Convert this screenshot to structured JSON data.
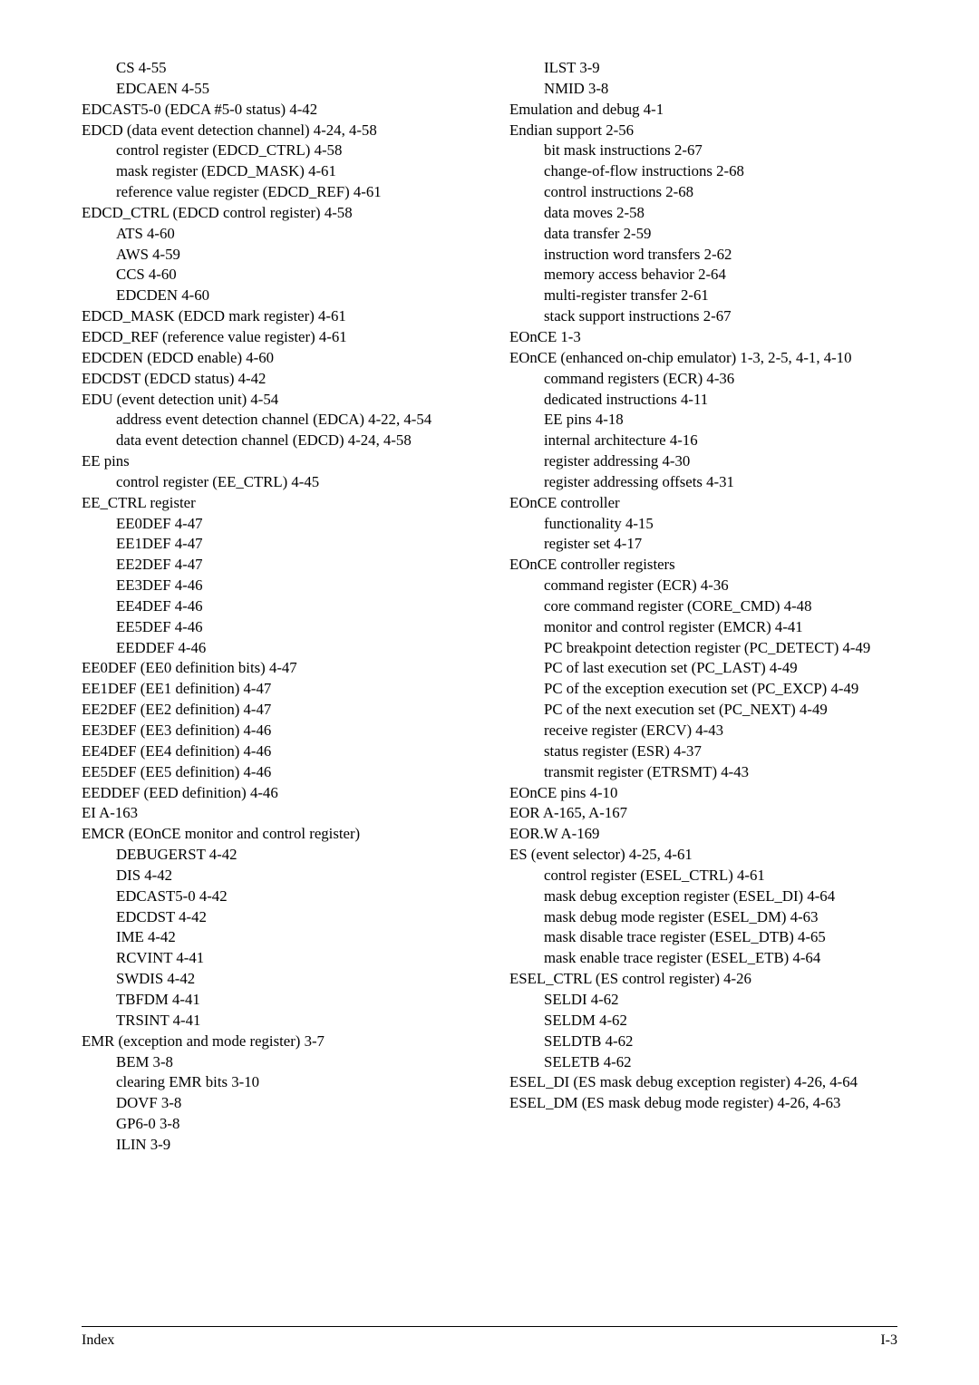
{
  "footer": {
    "left": "Index",
    "right": "I-3"
  },
  "left": [
    {
      "t": "CS 4-55",
      "l": 1
    },
    {
      "t": "EDCAEN 4-55",
      "l": 1
    },
    {
      "t": "EDCAST5-0 (EDCA #5-0 status) 4-42",
      "l": 0
    },
    {
      "t": "EDCD (data event detection channel) 4-24, 4-58",
      "l": 0
    },
    {
      "t": "control register (EDCD_CTRL) 4-58",
      "l": 1
    },
    {
      "t": "mask register (EDCD_MASK) 4-61",
      "l": 1
    },
    {
      "t": "reference value register (EDCD_REF) 4-61",
      "l": 1
    },
    {
      "t": "EDCD_CTRL (EDCD control register) 4-58",
      "l": 0
    },
    {
      "t": "ATS 4-60",
      "l": 1
    },
    {
      "t": "AWS 4-59",
      "l": 1
    },
    {
      "t": "CCS 4-60",
      "l": 1
    },
    {
      "t": "EDCDEN 4-60",
      "l": 1
    },
    {
      "t": "EDCD_MASK (EDCD mark register) 4-61",
      "l": 0
    },
    {
      "t": "EDCD_REF (reference value register) 4-61",
      "l": 0
    },
    {
      "t": "EDCDEN (EDCD enable) 4-60",
      "l": 0
    },
    {
      "t": "EDCDST (EDCD status) 4-42",
      "l": 0
    },
    {
      "t": "EDU (event detection unit) 4-54",
      "l": 0
    },
    {
      "t": "address event detection channel (EDCA) 4-22, 4-54",
      "l": 1
    },
    {
      "t": "data event detection channel (EDCD) 4-24, 4-58",
      "l": 1
    },
    {
      "t": "EE pins",
      "l": 0
    },
    {
      "t": "control register (EE_CTRL) 4-45",
      "l": 1
    },
    {
      "t": "EE_CTRL register",
      "l": 0
    },
    {
      "t": "EE0DEF 4-47",
      "l": 1
    },
    {
      "t": "EE1DEF 4-47",
      "l": 1
    },
    {
      "t": "EE2DEF 4-47",
      "l": 1
    },
    {
      "t": "EE3DEF 4-46",
      "l": 1
    },
    {
      "t": "EE4DEF 4-46",
      "l": 1
    },
    {
      "t": "EE5DEF 4-46",
      "l": 1
    },
    {
      "t": "EEDDEF 4-46",
      "l": 1
    },
    {
      "t": "EE0DEF (EE0 definition bits) 4-47",
      "l": 0
    },
    {
      "t": "EE1DEF (EE1 definition) 4-47",
      "l": 0
    },
    {
      "t": "EE2DEF (EE2 definition) 4-47",
      "l": 0
    },
    {
      "t": "EE3DEF (EE3 definition) 4-46",
      "l": 0
    },
    {
      "t": "EE4DEF (EE4 definition) 4-46",
      "l": 0
    },
    {
      "t": "EE5DEF (EE5 definition) 4-46",
      "l": 0
    },
    {
      "t": "EEDDEF (EED definition) 4-46",
      "l": 0
    },
    {
      "t": "EI A-163",
      "l": 0
    },
    {
      "t": "EMCR (EOnCE monitor and control register)",
      "l": 0
    },
    {
      "t": "DEBUGERST 4-42",
      "l": 1
    },
    {
      "t": "DIS 4-42",
      "l": 1
    },
    {
      "t": "EDCAST5-0 4-42",
      "l": 1
    },
    {
      "t": "EDCDST 4-42",
      "l": 1
    },
    {
      "t": "IME 4-42",
      "l": 1
    },
    {
      "t": "RCVINT 4-41",
      "l": 1
    },
    {
      "t": "SWDIS 4-42",
      "l": 1
    },
    {
      "t": "TBFDM 4-41",
      "l": 1
    },
    {
      "t": "TRSINT 4-41",
      "l": 1
    },
    {
      "t": "EMR (exception and mode register) 3-7",
      "l": 0
    },
    {
      "t": "BEM 3-8",
      "l": 1
    },
    {
      "t": "clearing EMR bits 3-10",
      "l": 1
    },
    {
      "t": "DOVF 3-8",
      "l": 1
    },
    {
      "t": "GP6-0 3-8",
      "l": 1
    },
    {
      "t": "ILIN 3-9",
      "l": 1
    }
  ],
  "right": [
    {
      "t": "ILST 3-9",
      "l": 1
    },
    {
      "t": "NMID 3-8",
      "l": 1
    },
    {
      "t": "Emulation and debug 4-1",
      "l": 0
    },
    {
      "t": "Endian support 2-56",
      "l": 0
    },
    {
      "t": "bit mask instructions 2-67",
      "l": 1
    },
    {
      "t": "change-of-flow instructions 2-68",
      "l": 1
    },
    {
      "t": "control instructions 2-68",
      "l": 1
    },
    {
      "t": "data moves 2-58",
      "l": 1
    },
    {
      "t": "data transfer 2-59",
      "l": 1
    },
    {
      "t": "instruction word transfers 2-62",
      "l": 1
    },
    {
      "t": "memory access behavior 2-64",
      "l": 1
    },
    {
      "t": "multi-register transfer 2-61",
      "l": 1
    },
    {
      "t": "stack support instructions 2-67",
      "l": 1
    },
    {
      "t": "EOnCE 1-3",
      "l": 0
    },
    {
      "t": "EOnCE (enhanced on-chip emulator) 1-3, 2-5, 4-1, 4-10",
      "l": 0
    },
    {
      "t": "command registers (ECR) 4-36",
      "l": 1
    },
    {
      "t": "dedicated instructions 4-11",
      "l": 1
    },
    {
      "t": "EE pins 4-18",
      "l": 1
    },
    {
      "t": "internal architecture 4-16",
      "l": 1
    },
    {
      "t": "register addressing 4-30",
      "l": 1
    },
    {
      "t": "register addressing offsets 4-31",
      "l": 1
    },
    {
      "t": "EOnCE controller",
      "l": 0
    },
    {
      "t": "functionality 4-15",
      "l": 1
    },
    {
      "t": "register set 4-17",
      "l": 1
    },
    {
      "t": "EOnCE controller registers",
      "l": 0
    },
    {
      "t": "command register (ECR) 4-36",
      "l": 1
    },
    {
      "t": "core command register (CORE_CMD) 4-48",
      "l": 1
    },
    {
      "t": "monitor and control register (EMCR) 4-41",
      "l": 1
    },
    {
      "t": "PC breakpoint detection register (PC_DETECT) 4-49",
      "l": 1
    },
    {
      "t": "PC of last execution set (PC_LAST) 4-49",
      "l": 1
    },
    {
      "t": "PC of the exception execution set (PC_EXCP) 4-49",
      "l": 1
    },
    {
      "t": "PC of the next execution set (PC_NEXT) 4-49",
      "l": 1
    },
    {
      "t": "receive register (ERCV) 4-43",
      "l": 1
    },
    {
      "t": "status register (ESR) 4-37",
      "l": 1
    },
    {
      "t": "transmit register (ETRSMT) 4-43",
      "l": 1
    },
    {
      "t": "EOnCE pins 4-10",
      "l": 0
    },
    {
      "t": "EOR A-165, A-167",
      "l": 0
    },
    {
      "t": "EOR.W A-169",
      "l": 0
    },
    {
      "t": "ES (event selector) 4-25, 4-61",
      "l": 0
    },
    {
      "t": "control register (ESEL_CTRL) 4-61",
      "l": 1
    },
    {
      "t": "mask debug exception register (ESEL_DI) 4-64",
      "l": 1
    },
    {
      "t": "mask debug mode register (ESEL_DM) 4-63",
      "l": 1
    },
    {
      "t": "mask disable trace register (ESEL_DTB) 4-65",
      "l": 1
    },
    {
      "t": "mask enable trace register (ESEL_ETB) 4-64",
      "l": 1
    },
    {
      "t": "ESEL_CTRL (ES control register) 4-26",
      "l": 0
    },
    {
      "t": "SELDI 4-62",
      "l": 1
    },
    {
      "t": "SELDM 4-62",
      "l": 1
    },
    {
      "t": "SELDTB 4-62",
      "l": 1
    },
    {
      "t": "SELETB 4-62",
      "l": 1
    },
    {
      "t": "ESEL_DI (ES mask debug exception register) 4-26, 4-64",
      "l": 0
    },
    {
      "t": "ESEL_DM (ES mask debug mode register) 4-26, 4-63",
      "l": 0
    }
  ]
}
